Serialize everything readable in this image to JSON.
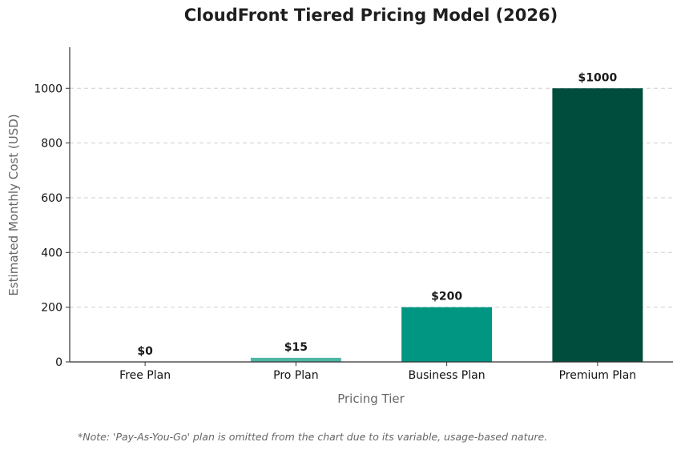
{
  "chart_data": {
    "type": "bar",
    "title": "CloudFront Tiered Pricing Model (2026)",
    "xlabel": "Pricing Tier",
    "ylabel": "Estimated Monthly Cost (USD)",
    "categories": [
      "Free Plan",
      "Pro Plan",
      "Business Plan",
      "Premium Plan"
    ],
    "values": [
      0,
      15,
      200,
      1000
    ],
    "data_labels": [
      "$0",
      "$15",
      "$200",
      "$1000"
    ],
    "colors": [
      "#66c2b0",
      "#4db6a4",
      "#009682",
      "#004d3e"
    ],
    "ylim": [
      0,
      1150
    ],
    "yticks": [
      0,
      200,
      400,
      600,
      800,
      1000
    ],
    "grid": "y-dashed",
    "legend": "none"
  },
  "footnote": "*Note: 'Pay-As-You-Go' plan is omitted from the chart due to its variable, usage-based nature."
}
